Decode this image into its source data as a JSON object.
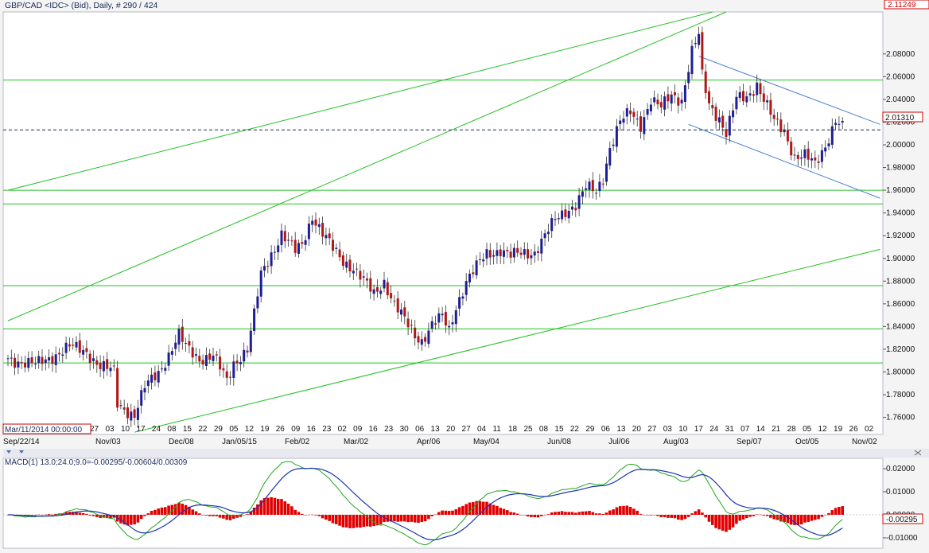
{
  "header": {
    "title": "GBP/CAD <IDC> (Bid), Daily, # 290 / 424",
    "top_right_price": "2.11249",
    "cursor_time": "Mar/11/2014 00:00:00"
  },
  "colors": {
    "up_candle": "#1e1e96",
    "down_candle": "#b01818",
    "grid_line": "#22c022",
    "channel_line": "#4a7fd6",
    "macd_line": "#1a33b4",
    "signal_line": "#1fa51f",
    "histogram": "#e00000"
  },
  "chart_data": [
    {
      "type": "candlestick",
      "title": "GBP/CAD <IDC> (Bid), Daily, # 290 / 424",
      "ylim": [
        1.745,
        2.117
      ],
      "y_ticks": [
        "2.08000",
        "2.06000",
        "2.04000",
        "2.02000",
        "2.00000",
        "1.98000",
        "1.96000",
        "1.94000",
        "1.92000",
        "1.90000",
        "1.88000",
        "1.86000",
        "1.84000",
        "1.82000",
        "1.80000",
        "1.78000",
        "1.76000"
      ],
      "last_price": "2.01310",
      "x_day_labels": [
        "27",
        "03",
        "10",
        "17",
        "24",
        "08",
        "15",
        "22",
        "29",
        "05",
        "12",
        "19",
        "26",
        "09",
        "16",
        "23",
        "02",
        "09",
        "16",
        "23",
        "30",
        "06",
        "13",
        "20",
        "27",
        "04",
        "11",
        "18",
        "25",
        "08",
        "15",
        "22",
        "29",
        "06",
        "13",
        "20",
        "27",
        "03",
        "10",
        "17",
        "24",
        "31",
        "07",
        "14",
        "21",
        "28",
        "05",
        "12",
        "19",
        "26",
        "02"
      ],
      "x_month_labels": [
        "Sep/22/14",
        "Nov/03",
        "Dec/08",
        "Jan/05/15",
        "Feb/02",
        "Mar/02",
        "Apr/06",
        "May/04",
        "Jun/08",
        "Jul/06",
        "Aug/03",
        "Sep/07",
        "Oct/05",
        "Nov/02"
      ],
      "horizontal_levels": [
        2.057,
        1.96,
        1.948,
        1.876,
        1.838,
        1.808
      ],
      "last_price_value": 2.0131,
      "close_anchors": [
        [
          0,
          1.812
        ],
        [
          8,
          1.806
        ],
        [
          18,
          1.822
        ],
        [
          23,
          1.818
        ],
        [
          27,
          1.805
        ],
        [
          31,
          1.8
        ],
        [
          32,
          1.772
        ],
        [
          37,
          1.762
        ],
        [
          40,
          1.786
        ],
        [
          44,
          1.8
        ],
        [
          46,
          1.81
        ],
        [
          50,
          1.832
        ],
        [
          52,
          1.822
        ],
        [
          56,
          1.812
        ],
        [
          60,
          1.814
        ],
        [
          64,
          1.792
        ],
        [
          66,
          1.808
        ],
        [
          70,
          1.82
        ],
        [
          72,
          1.85
        ],
        [
          74,
          1.885
        ],
        [
          76,
          1.898
        ],
        [
          80,
          1.922
        ],
        [
          84,
          1.906
        ],
        [
          86,
          1.912
        ],
        [
          89,
          1.938
        ],
        [
          92,
          1.922
        ],
        [
          95,
          1.908
        ],
        [
          98,
          1.898
        ],
        [
          101,
          1.892
        ],
        [
          104,
          1.88
        ],
        [
          107,
          1.868
        ],
        [
          110,
          1.88
        ],
        [
          113,
          1.86
        ],
        [
          116,
          1.845
        ],
        [
          119,
          1.832
        ],
        [
          121,
          1.828
        ],
        [
          124,
          1.842
        ],
        [
          127,
          1.848
        ],
        [
          129,
          1.836
        ],
        [
          131,
          1.858
        ],
        [
          134,
          1.88
        ],
        [
          137,
          1.892
        ],
        [
          140,
          1.904
        ],
        [
          144,
          1.908
        ],
        [
          147,
          1.902
        ],
        [
          150,
          1.904
        ],
        [
          154,
          1.906
        ],
        [
          157,
          1.92
        ],
        [
          160,
          1.933
        ],
        [
          163,
          1.942
        ],
        [
          166,
          1.948
        ],
        [
          169,
          1.962
        ],
        [
          172,
          1.958
        ],
        [
          174,
          1.972
        ],
        [
          176,
          1.998
        ],
        [
          179,
          2.02
        ],
        [
          182,
          2.028
        ],
        [
          185,
          2.018
        ],
        [
          188,
          2.04
        ],
        [
          191,
          2.032
        ],
        [
          194,
          2.044
        ],
        [
          197,
          2.04
        ],
        [
          200,
          2.082
        ],
        [
          202,
          2.096
        ],
        [
          203,
          2.06
        ],
        [
          205,
          2.036
        ],
        [
          208,
          2.024
        ],
        [
          210,
          2.01
        ],
        [
          213,
          2.04
        ],
        [
          216,
          2.042
        ],
        [
          219,
          2.054
        ],
        [
          221,
          2.04
        ],
        [
          224,
          2.02
        ],
        [
          227,
          2.012
        ],
        [
          230,
          1.99
        ],
        [
          233,
          1.99
        ],
        [
          236,
          1.982
        ],
        [
          239,
          2.0
        ],
        [
          242,
          2.022
        ],
        [
          244,
          2.015
        ]
      ]
    },
    {
      "type": "line",
      "title": "MACD(1) 13.0;24.0;9.0=-0.00295/-0.00604/0.00309",
      "ylim": [
        -0.0145,
        0.0245
      ],
      "y_ticks": [
        "0.02000",
        "0.01000",
        "0.00000",
        "-0.01000"
      ],
      "last_value": "-0.00295",
      "series": [
        {
          "values": "derived from price closes (EMA 13 - EMA 24)"
        },
        {
          "values": "EMA 9 of MACD"
        }
      ]
    }
  ]
}
